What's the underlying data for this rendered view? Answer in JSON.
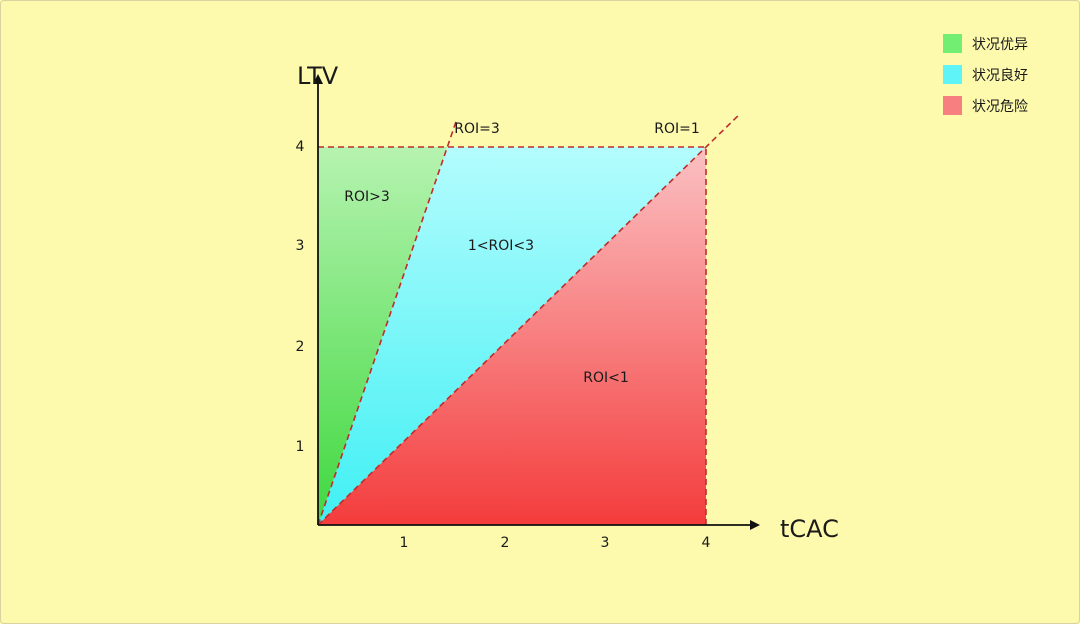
{
  "chart_data": {
    "type": "area",
    "xlabel": "tCAC",
    "ylabel": "LTV",
    "xlim": [
      0,
      4
    ],
    "ylim": [
      0,
      4
    ],
    "x_ticks": [
      "1",
      "2",
      "3",
      "4"
    ],
    "y_ticks": [
      "1",
      "2",
      "3",
      "4"
    ],
    "regions": [
      {
        "label": "ROI>3",
        "condition": "LTV/tCAC > 3",
        "color": "#5de05a"
      },
      {
        "label": "1<ROI<3",
        "condition": "1 < LTV/tCAC < 3",
        "color": "#5ff4f8"
      },
      {
        "label": "ROI<1",
        "condition": "LTV/tCAC < 1",
        "color": "#f54848"
      }
    ],
    "reference_lines": [
      {
        "label": "ROI=3",
        "slope": 3
      },
      {
        "label": "ROI=1",
        "slope": 1
      }
    ],
    "legend": {
      "position": "top-right",
      "items": [
        {
          "label": "状况优异",
          "color": "#72ee72"
        },
        {
          "label": "状况良好",
          "color": "#5ff4f8"
        },
        {
          "label": "状况危险",
          "color": "#f77f7f"
        }
      ]
    }
  }
}
